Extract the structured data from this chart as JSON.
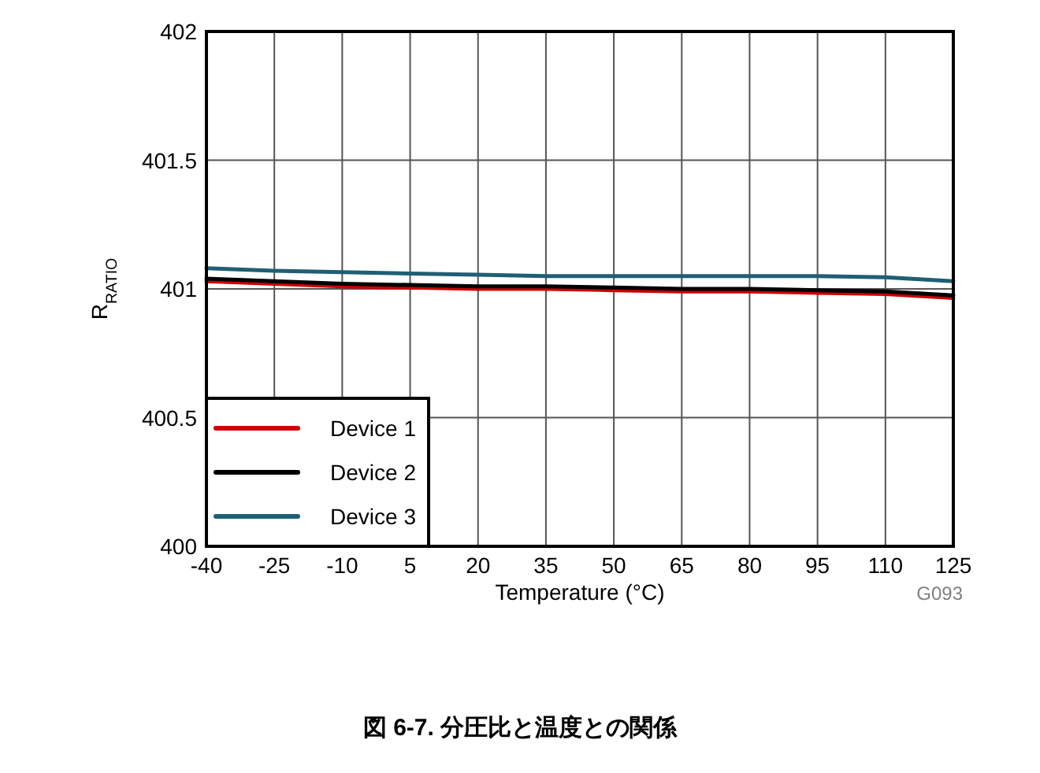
{
  "chart_data": {
    "type": "line",
    "xlabel": "Temperature (°C)",
    "ylabel": "R$_{RATIO}$",
    "x": [
      -40,
      -25,
      -10,
      5,
      20,
      35,
      50,
      65,
      80,
      95,
      110,
      125
    ],
    "series": [
      {
        "name": "Device 1",
        "color": "#cc0000",
        "values": [
          401.03,
          401.02,
          401.01,
          401.005,
          401.0,
          401.0,
          400.995,
          400.99,
          400.99,
          400.985,
          400.98,
          400.965
        ]
      },
      {
        "name": "Device 2",
        "color": "#000000",
        "values": [
          401.04,
          401.03,
          401.02,
          401.015,
          401.01,
          401.01,
          401.005,
          401.0,
          401.0,
          400.995,
          400.99,
          400.975
        ]
      },
      {
        "name": "Device 3",
        "color": "#1f5f73",
        "values": [
          401.08,
          401.07,
          401.065,
          401.06,
          401.055,
          401.05,
          401.05,
          401.05,
          401.05,
          401.05,
          401.045,
          401.03
        ]
      }
    ],
    "xlim": [
      -40,
      125
    ],
    "ylim": [
      400,
      402
    ],
    "xticks": [
      -40,
      -25,
      -10,
      5,
      20,
      35,
      50,
      65,
      80,
      95,
      110,
      125
    ],
    "yticks": [
      400,
      400.5,
      401,
      401.5,
      402
    ],
    "grid": true,
    "legend": "bottom left",
    "annotations": [
      "G093",
      "図 6-7. 分圧比と温度との関係"
    ]
  }
}
